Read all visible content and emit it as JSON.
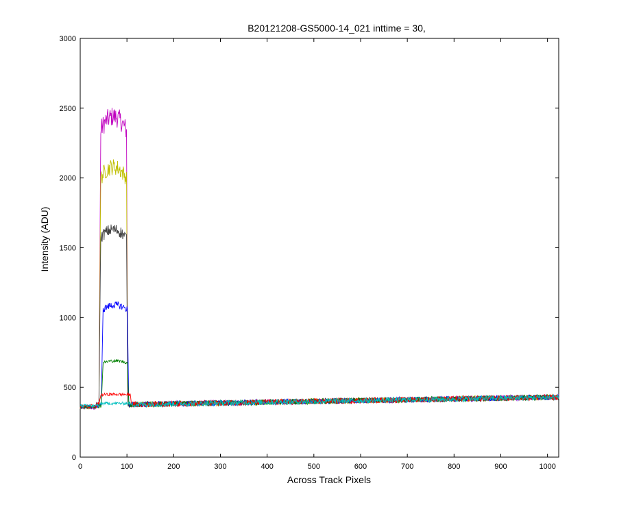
{
  "chart_data": {
    "type": "line",
    "title": "B20121208-GS5000-14_021 inttime = 30,",
    "xlabel": "Across Track Pixels",
    "ylabel": "Intensity (ADU)",
    "xlim": [
      0,
      1024
    ],
    "ylim": [
      0,
      3000
    ],
    "xticks": [
      0,
      100,
      200,
      300,
      400,
      500,
      600,
      700,
      800,
      900,
      1000
    ],
    "yticks": [
      0,
      500,
      1000,
      1500,
      2000,
      2500,
      3000
    ],
    "grid": false,
    "legend": "none",
    "series": [
      {
        "color": "#bf00bf",
        "plateau_x": [
          40,
          102
        ],
        "plateau_level": 2440,
        "baseline_start": 370,
        "baseline_end": 430
      },
      {
        "color": "#bfbf00",
        "plateau_x": [
          40,
          102
        ],
        "plateau_level": 2080,
        "baseline_start": 370,
        "baseline_end": 430
      },
      {
        "color": "#404040",
        "plateau_x": [
          40,
          102
        ],
        "plateau_level": 1630,
        "baseline_start": 370,
        "baseline_end": 430
      },
      {
        "color": "#0000ff",
        "plateau_x": [
          45,
          104
        ],
        "plateau_level": 1090,
        "baseline_start": 370,
        "baseline_end": 430
      },
      {
        "color": "#008000",
        "plateau_x": [
          45,
          104
        ],
        "plateau_level": 690,
        "baseline_start": 370,
        "baseline_end": 430
      },
      {
        "color": "#ff0000",
        "plateau_x": [
          40,
          110
        ],
        "plateau_level": 450,
        "baseline_start": 370,
        "baseline_end": 430
      },
      {
        "color": "#00bfbf",
        "plateau_x": [
          40,
          110
        ],
        "plateau_level": 385,
        "baseline_start": 370,
        "baseline_end": 430
      }
    ]
  }
}
